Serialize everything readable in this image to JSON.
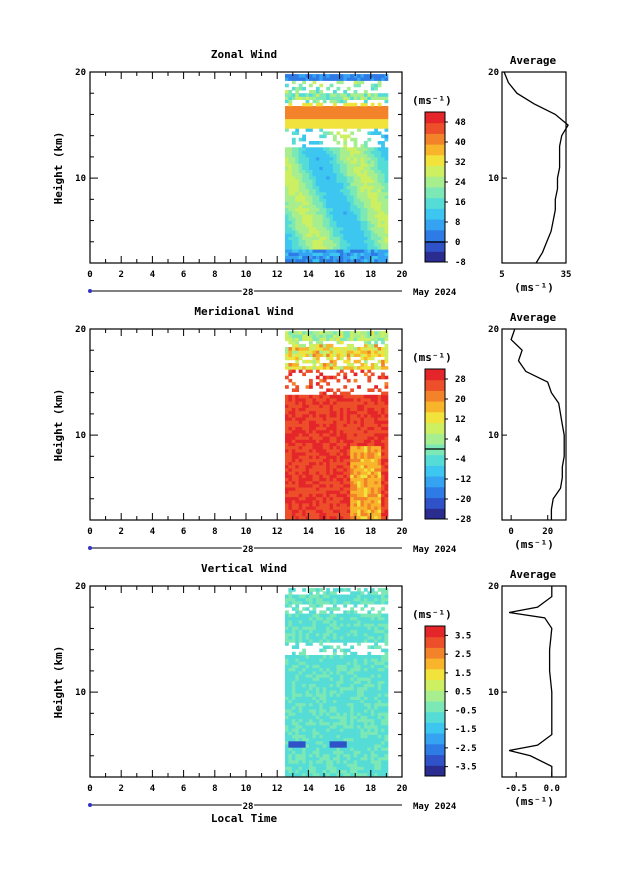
{
  "figure": {
    "month_label": "May 2024",
    "day_label": "28",
    "xlabel_bottom": "Local Time",
    "avg_title": "Average",
    "unit_label": "(ms⁻¹)"
  },
  "chart_data": [
    {
      "type": "heatmap",
      "title": "Zonal Wind",
      "ylabel": "Height (km)",
      "xlabel": "",
      "x_range": [
        0,
        20
      ],
      "x_ticks": [
        "0",
        "2",
        "4",
        "6",
        "8",
        "10",
        "12",
        "14",
        "16",
        "18",
        "20"
      ],
      "y_range": [
        2,
        20
      ],
      "y_ticks": [
        "10",
        "20"
      ],
      "data_x_range": [
        12.5,
        19.0
      ],
      "colorbar": {
        "unit": "(ms⁻¹)",
        "ticks": [
          "48",
          "40",
          "32",
          "24",
          "16",
          "8",
          "0",
          "-8"
        ],
        "range": [
          -8,
          52
        ],
        "contour_at": 0
      },
      "average_profile": {
        "title": "Average",
        "x_ticks": [
          "5",
          "35"
        ],
        "x_range": [
          5,
          35
        ],
        "y_ticks": [
          "10",
          "20"
        ],
        "xlabel": "(ms⁻¹)",
        "heights": [
          2,
          3,
          4,
          5,
          6,
          7,
          8,
          9,
          10,
          11,
          12,
          13,
          14,
          15,
          16,
          17,
          18,
          19,
          20
        ],
        "values": [
          21,
          24,
          26,
          28,
          29,
          30,
          30,
          31,
          31,
          32,
          32,
          32,
          33,
          36,
          30,
          20,
          12,
          8,
          6
        ]
      }
    },
    {
      "type": "heatmap",
      "title": "Meridional Wind",
      "ylabel": "Height (km)",
      "xlabel": "",
      "x_range": [
        0,
        20
      ],
      "x_ticks": [
        "0",
        "2",
        "4",
        "6",
        "8",
        "10",
        "12",
        "14",
        "16",
        "18",
        "20"
      ],
      "y_range": [
        2,
        20
      ],
      "y_ticks": [
        "10",
        "20"
      ],
      "data_x_range": [
        12.5,
        19.0
      ],
      "colorbar": {
        "unit": "(ms⁻¹)",
        "ticks": [
          "28",
          "20",
          "12",
          "4",
          "-4",
          "-12",
          "-20",
          "-28"
        ],
        "range": [
          -28,
          32
        ],
        "contour_at": 0
      },
      "average_profile": {
        "title": "Average",
        "x_ticks": [
          "0",
          "20"
        ],
        "x_range": [
          -5,
          30
        ],
        "y_ticks": [
          "10",
          "20"
        ],
        "xlabel": "(ms⁻¹)",
        "heights": [
          2,
          3,
          4,
          5,
          6,
          7,
          8,
          9,
          10,
          11,
          12,
          13,
          14,
          15,
          16,
          17,
          18,
          19,
          20
        ],
        "values": [
          22,
          22,
          23,
          27,
          28,
          28,
          29,
          29,
          29,
          28,
          27,
          26,
          22,
          20,
          8,
          4,
          6,
          0,
          2
        ]
      }
    },
    {
      "type": "heatmap",
      "title": "Vertical Wind",
      "ylabel": "Height (km)",
      "xlabel": "Local Time",
      "x_range": [
        0,
        20
      ],
      "x_ticks": [
        "0",
        "2",
        "4",
        "6",
        "8",
        "10",
        "12",
        "14",
        "16",
        "18",
        "20"
      ],
      "y_range": [
        2,
        20
      ],
      "y_ticks": [
        "10",
        "20"
      ],
      "data_x_range": [
        12.5,
        19.0
      ],
      "colorbar": {
        "unit": "(ms⁻¹)",
        "ticks": [
          "3.5",
          "2.5",
          "1.5",
          "0.5",
          "-0.5",
          "-1.5",
          "-2.5",
          "-3.5"
        ],
        "range": [
          -4,
          4
        ],
        "contour_at": null
      },
      "average_profile": {
        "title": "Average",
        "x_ticks": [
          "-0.5",
          "0.0"
        ],
        "x_range": [
          -0.7,
          0.2
        ],
        "y_ticks": [
          "10",
          "20"
        ],
        "xlabel": "(ms⁻¹)",
        "heights": [
          2,
          3,
          4,
          4.5,
          5,
          6,
          8,
          10,
          12,
          14,
          16,
          17,
          17.5,
          18,
          19,
          20
        ],
        "values": [
          0.0,
          0.0,
          -0.3,
          -0.6,
          -0.2,
          0.0,
          0.0,
          0.0,
          -0.03,
          -0.03,
          0.0,
          -0.1,
          -0.6,
          -0.2,
          0.0,
          0.0
        ]
      }
    }
  ]
}
